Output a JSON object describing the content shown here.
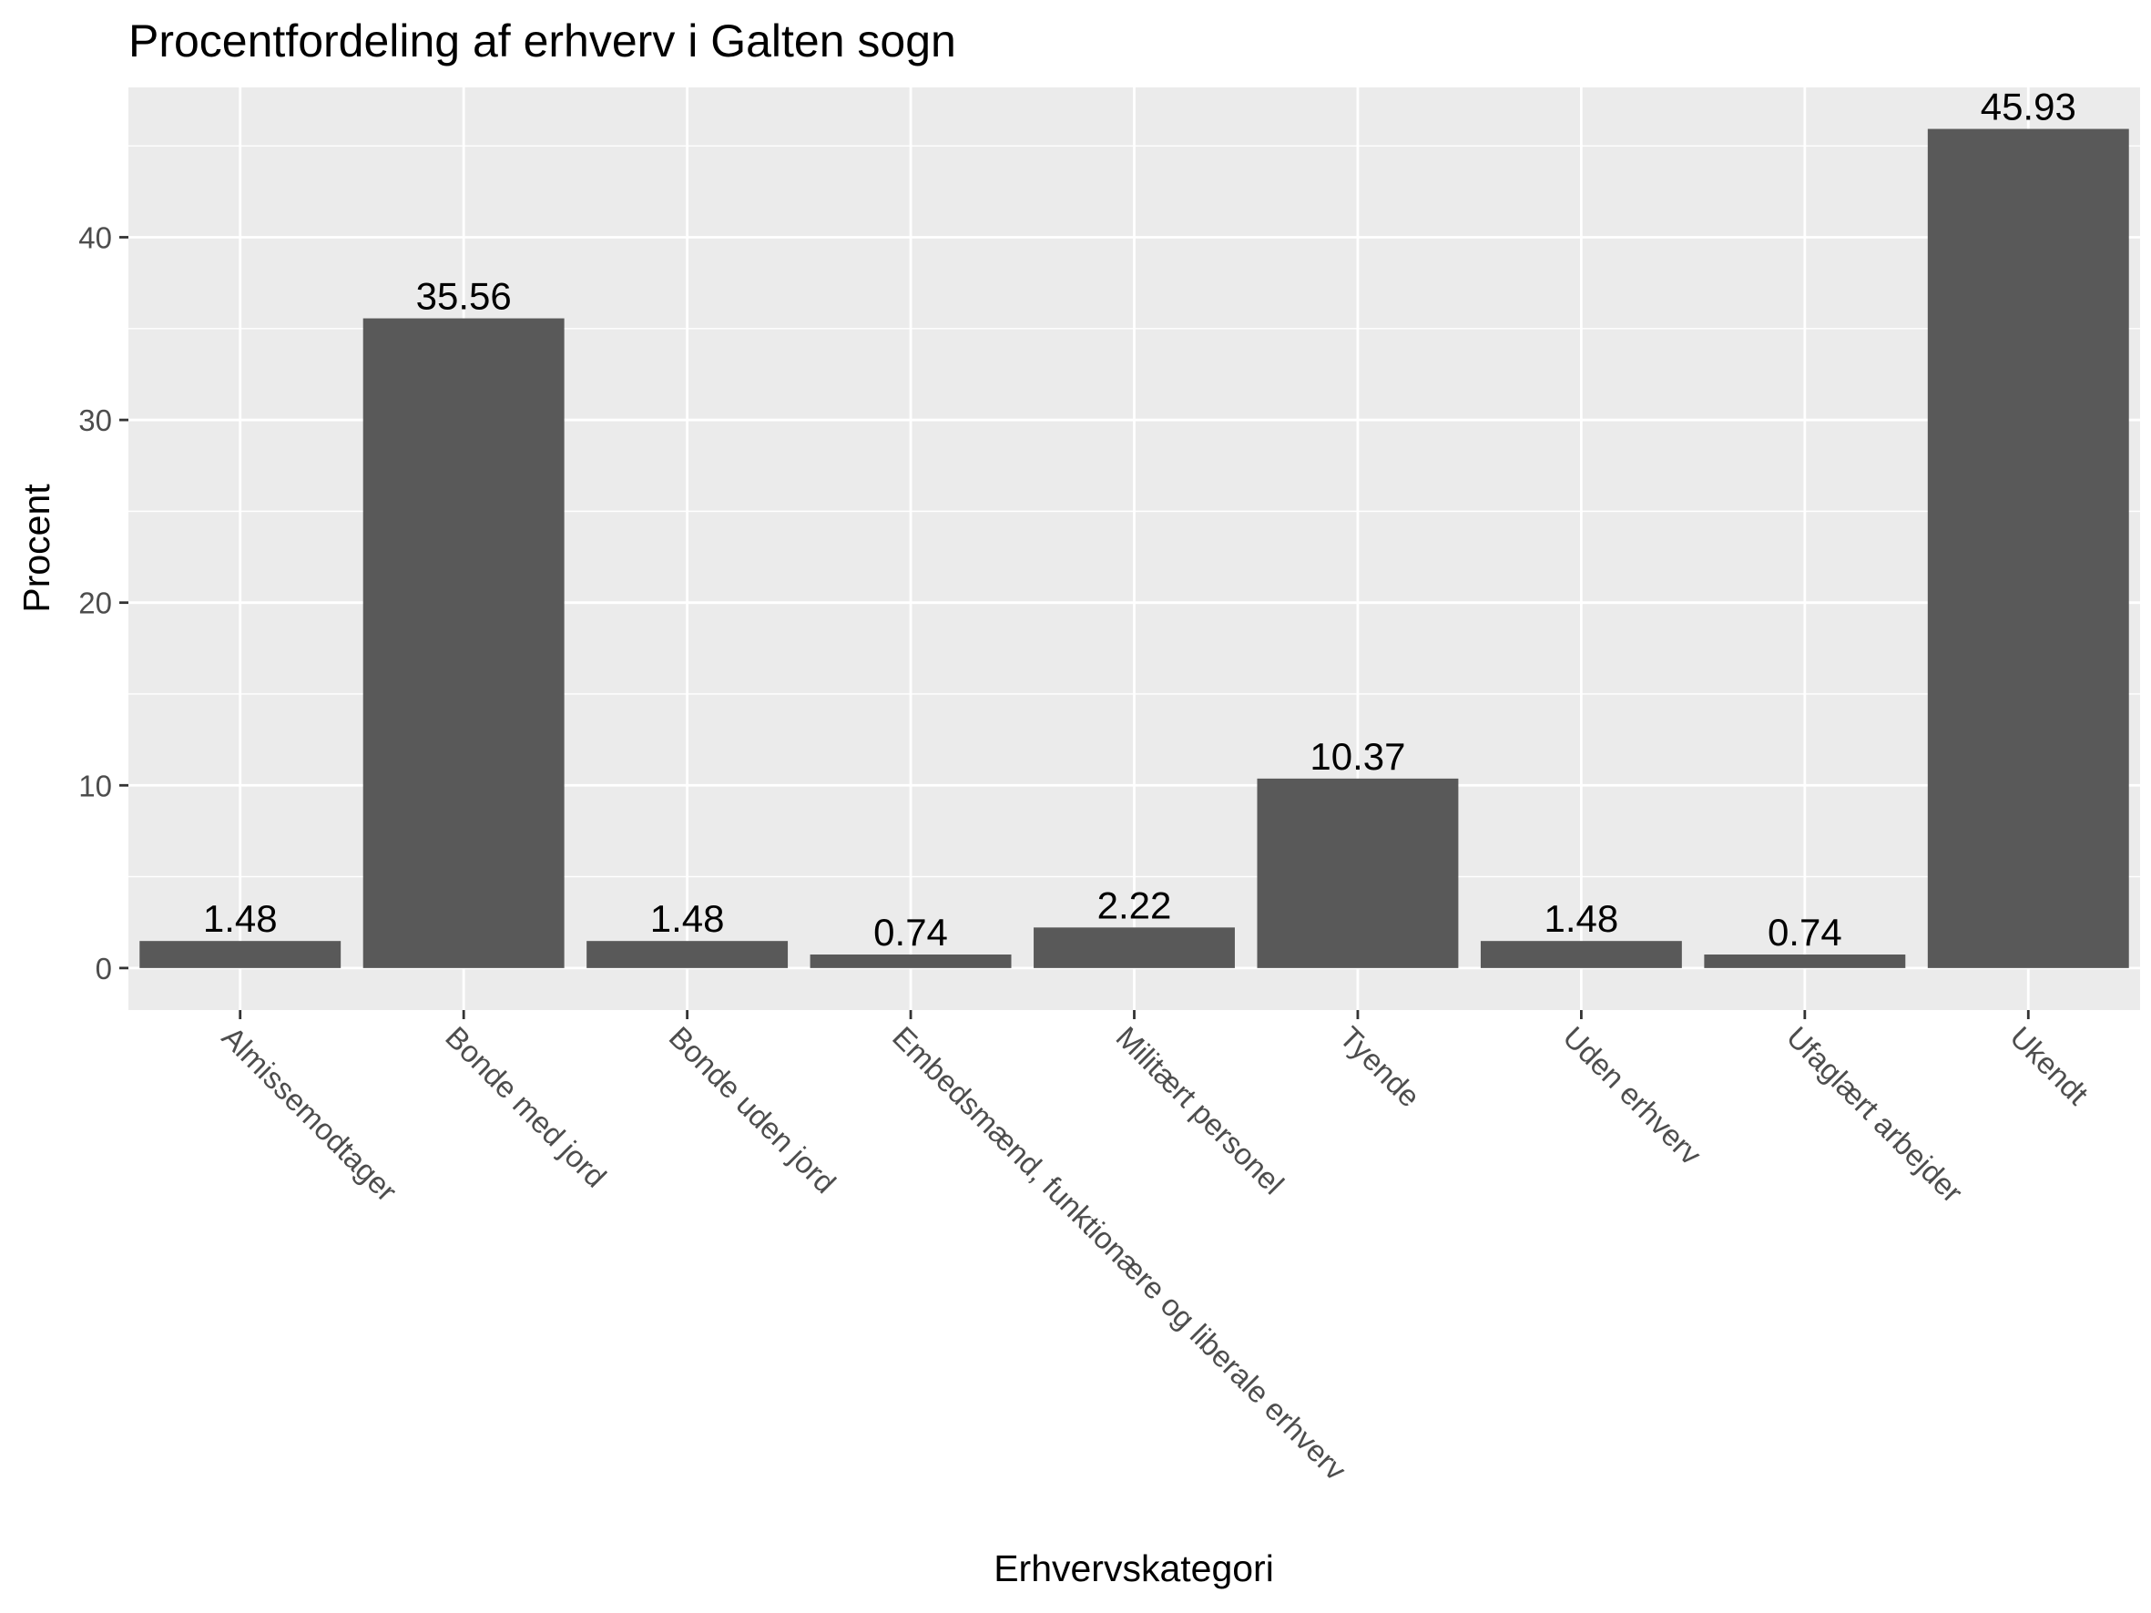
{
  "chart_data": {
    "type": "bar",
    "title": "Procentfordeling af erhverv i Galten sogn",
    "xlabel": "Erhvervskategori",
    "ylabel": "Procent",
    "categories": [
      "Almissemodtager",
      "Bonde med jord",
      "Bonde uden jord",
      "Embedsmænd, funktionære og liberale erhverv",
      "Militært personel",
      "Tyende",
      "Uden erhverv",
      "Ufaglært arbejder",
      "Ukendt"
    ],
    "values": [
      1.48,
      35.56,
      1.48,
      0.74,
      2.22,
      10.37,
      1.48,
      0.74,
      45.93
    ],
    "value_labels": [
      "1.48",
      "35.56",
      "1.48",
      "0.74",
      "2.22",
      "10.37",
      "1.48",
      "0.74",
      "45.93"
    ],
    "y_ticks": [
      0,
      10,
      20,
      30,
      40
    ],
    "ylim": [
      -2.3,
      48.2
    ],
    "grid": true,
    "colors": {
      "bar": "#595959",
      "panel": "#ebebeb",
      "grid_major": "#ffffff",
      "tick_text": "#4d4d4d"
    }
  }
}
